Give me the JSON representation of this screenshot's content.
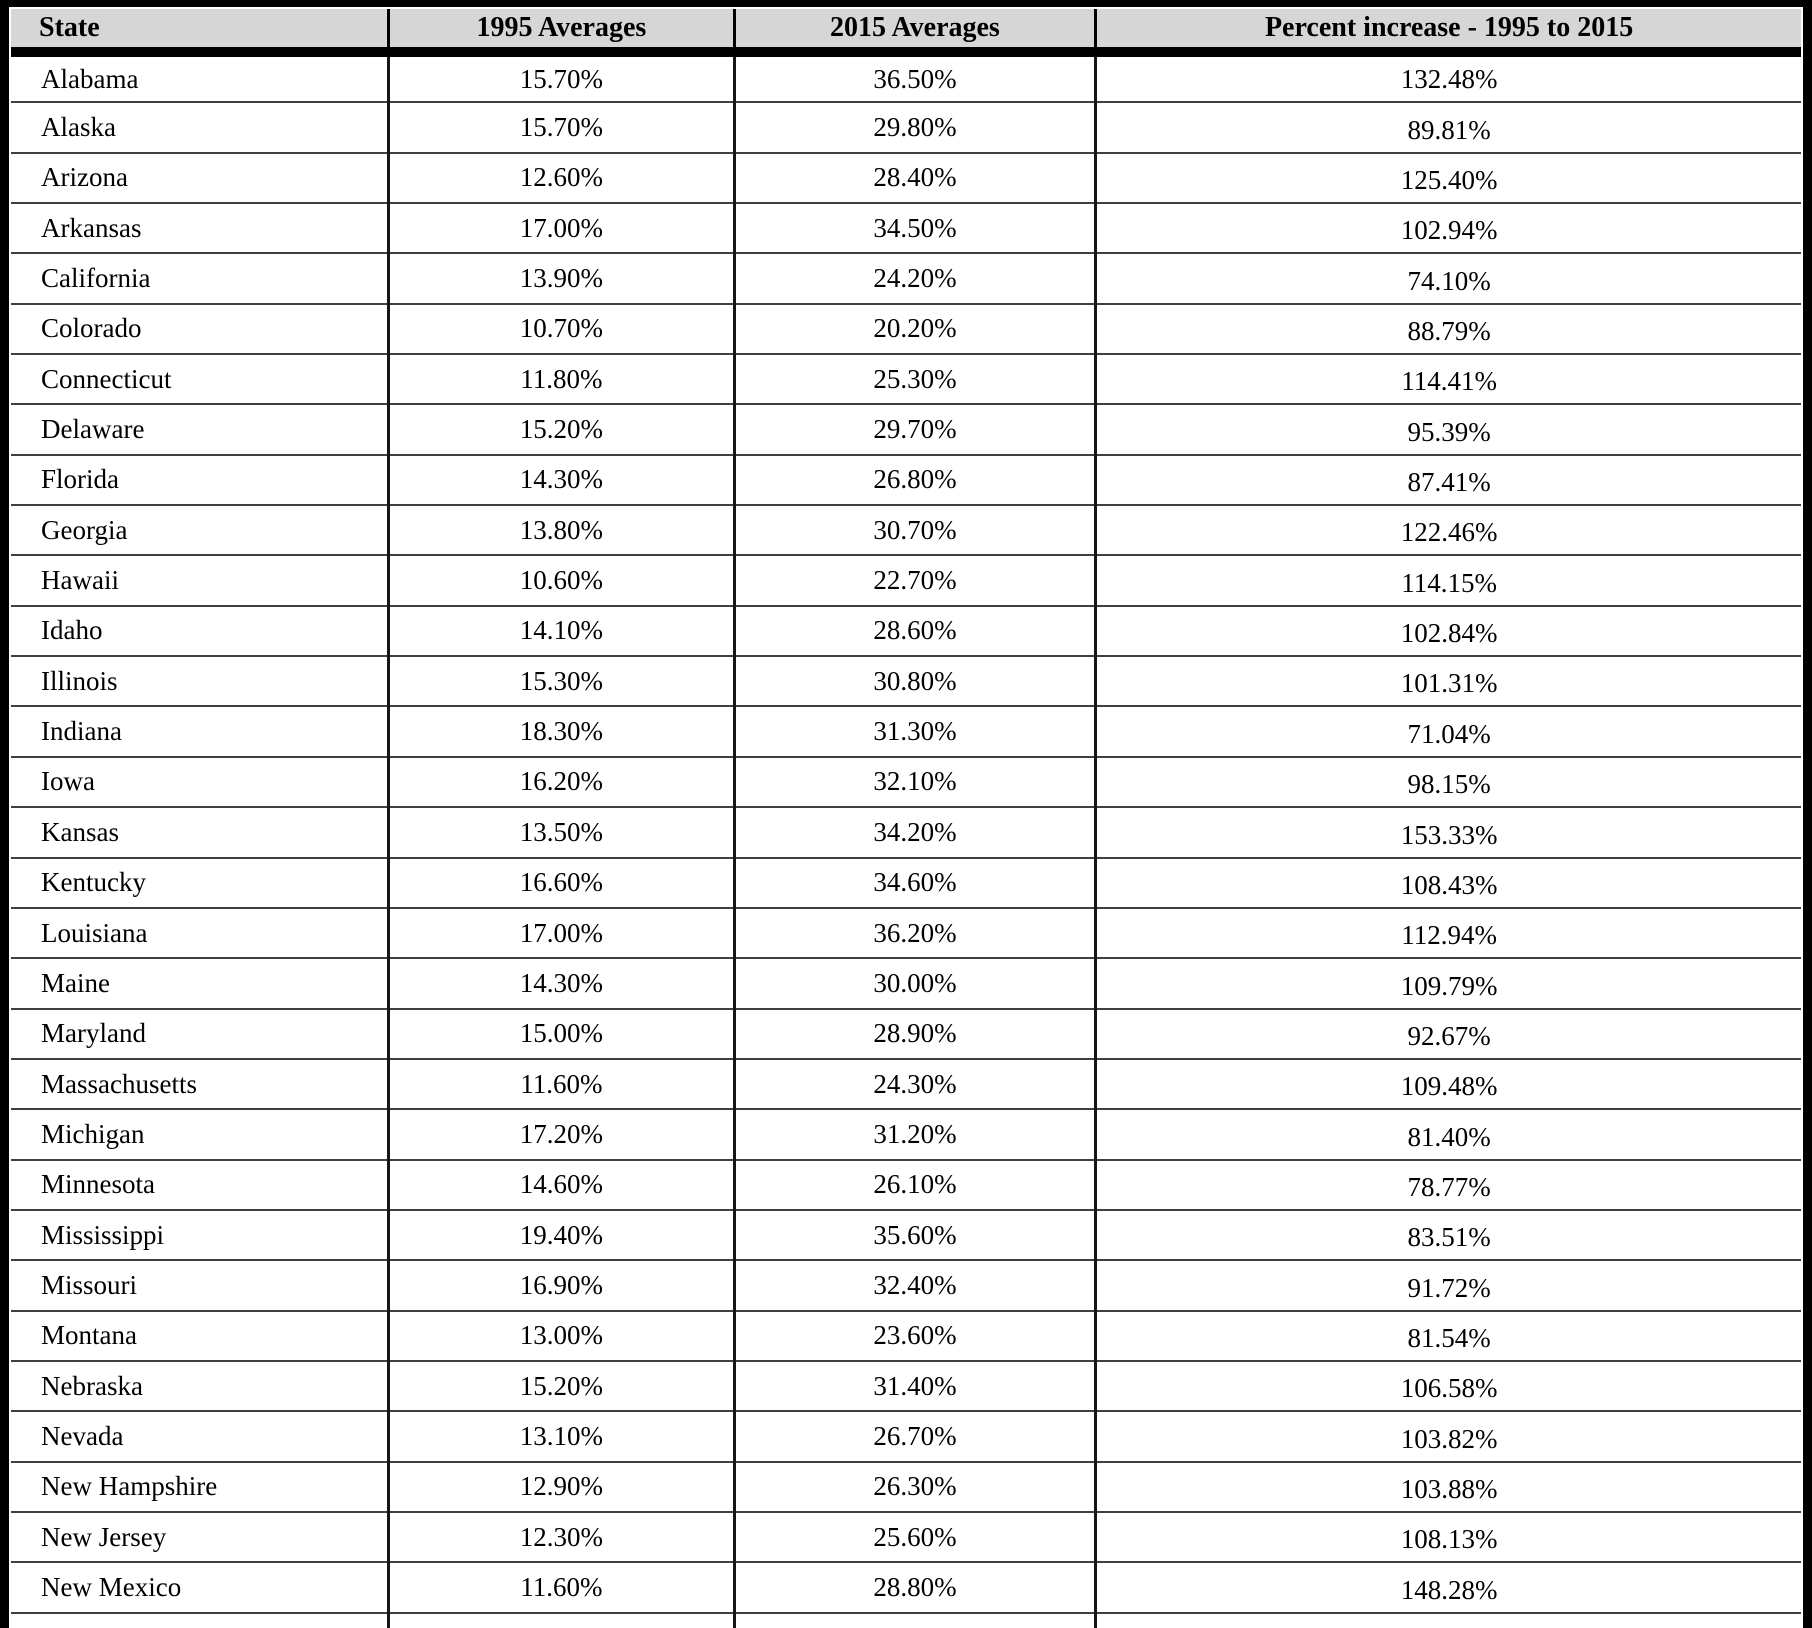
{
  "table": {
    "columns": [
      "State",
      "1995 Averages",
      "2015 Averages",
      "Percent increase - 1995 to 2015"
    ],
    "rows": [
      {
        "state": "Alabama",
        "avg_1995": "15.70%",
        "avg_2015": "36.50%",
        "pct_increase": "132.48%"
      },
      {
        "state": "Alaska",
        "avg_1995": "15.70%",
        "avg_2015": "29.80%",
        "pct_increase": "89.81%"
      },
      {
        "state": "Arizona",
        "avg_1995": "12.60%",
        "avg_2015": "28.40%",
        "pct_increase": "125.40%"
      },
      {
        "state": "Arkansas",
        "avg_1995": "17.00%",
        "avg_2015": "34.50%",
        "pct_increase": "102.94%"
      },
      {
        "state": "California",
        "avg_1995": "13.90%",
        "avg_2015": "24.20%",
        "pct_increase": "74.10%"
      },
      {
        "state": "Colorado",
        "avg_1995": "10.70%",
        "avg_2015": "20.20%",
        "pct_increase": "88.79%"
      },
      {
        "state": "Connecticut",
        "avg_1995": "11.80%",
        "avg_2015": "25.30%",
        "pct_increase": "114.41%"
      },
      {
        "state": "Delaware",
        "avg_1995": "15.20%",
        "avg_2015": "29.70%",
        "pct_increase": "95.39%"
      },
      {
        "state": "Florida",
        "avg_1995": "14.30%",
        "avg_2015": "26.80%",
        "pct_increase": "87.41%"
      },
      {
        "state": "Georgia",
        "avg_1995": "13.80%",
        "avg_2015": "30.70%",
        "pct_increase": "122.46%"
      },
      {
        "state": "Hawaii",
        "avg_1995": "10.60%",
        "avg_2015": "22.70%",
        "pct_increase": "114.15%"
      },
      {
        "state": "Idaho",
        "avg_1995": "14.10%",
        "avg_2015": "28.60%",
        "pct_increase": "102.84%"
      },
      {
        "state": "Illinois",
        "avg_1995": "15.30%",
        "avg_2015": "30.80%",
        "pct_increase": "101.31%"
      },
      {
        "state": "Indiana",
        "avg_1995": "18.30%",
        "avg_2015": "31.30%",
        "pct_increase": "71.04%"
      },
      {
        "state": "Iowa",
        "avg_1995": "16.20%",
        "avg_2015": "32.10%",
        "pct_increase": "98.15%"
      },
      {
        "state": "Kansas",
        "avg_1995": "13.50%",
        "avg_2015": "34.20%",
        "pct_increase": "153.33%"
      },
      {
        "state": "Kentucky",
        "avg_1995": "16.60%",
        "avg_2015": "34.60%",
        "pct_increase": "108.43%"
      },
      {
        "state": "Louisiana",
        "avg_1995": "17.00%",
        "avg_2015": "36.20%",
        "pct_increase": "112.94%"
      },
      {
        "state": "Maine",
        "avg_1995": "14.30%",
        "avg_2015": "30.00%",
        "pct_increase": "109.79%"
      },
      {
        "state": "Maryland",
        "avg_1995": "15.00%",
        "avg_2015": "28.90%",
        "pct_increase": "92.67%"
      },
      {
        "state": "Massachusetts",
        "avg_1995": "11.60%",
        "avg_2015": "24.30%",
        "pct_increase": "109.48%"
      },
      {
        "state": "Michigan",
        "avg_1995": "17.20%",
        "avg_2015": "31.20%",
        "pct_increase": "81.40%"
      },
      {
        "state": "Minnesota",
        "avg_1995": "14.60%",
        "avg_2015": "26.10%",
        "pct_increase": "78.77%"
      },
      {
        "state": "Mississippi",
        "avg_1995": "19.40%",
        "avg_2015": "35.60%",
        "pct_increase": "83.51%"
      },
      {
        "state": "Missouri",
        "avg_1995": "16.90%",
        "avg_2015": "32.40%",
        "pct_increase": "91.72%"
      },
      {
        "state": "Montana",
        "avg_1995": "13.00%",
        "avg_2015": "23.60%",
        "pct_increase": "81.54%"
      },
      {
        "state": "Nebraska",
        "avg_1995": "15.20%",
        "avg_2015": "31.40%",
        "pct_increase": "106.58%"
      },
      {
        "state": "Nevada",
        "avg_1995": "13.10%",
        "avg_2015": "26.70%",
        "pct_increase": "103.82%"
      },
      {
        "state": "New Hampshire",
        "avg_1995": "12.90%",
        "avg_2015": "26.30%",
        "pct_increase": "103.88%"
      },
      {
        "state": "New Jersey",
        "avg_1995": "12.30%",
        "avg_2015": "25.60%",
        "pct_increase": "108.13%"
      },
      {
        "state": "New Mexico",
        "avg_1995": "11.60%",
        "avg_2015": "28.80%",
        "pct_increase": "148.28%"
      }
    ]
  },
  "colors": {
    "header_bg": "#d6d6d6",
    "outer_border": "#000000",
    "row_border": "#3f3f3f",
    "text": "#000000"
  }
}
